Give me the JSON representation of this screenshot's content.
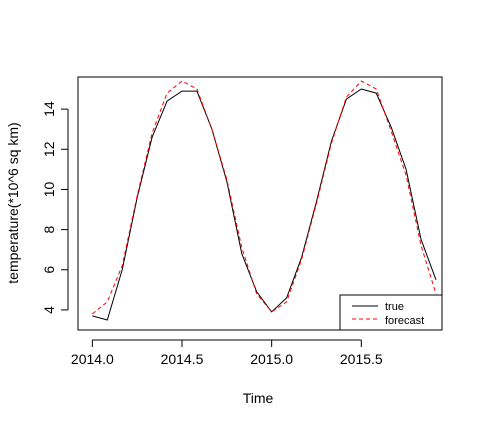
{
  "chart_data": {
    "type": "line",
    "xlabel": "Time",
    "ylabel": "temperature(*10^6 sq km)",
    "xlim": [
      2013.92,
      2015.95
    ],
    "ylim": [
      3.0,
      15.6
    ],
    "xticks": [
      2014.0,
      2014.5,
      2015.0,
      2015.5
    ],
    "xtick_labels": [
      "2014.0",
      "2014.5",
      "2015.0",
      "2015.5"
    ],
    "yticks": [
      4,
      6,
      8,
      10,
      12,
      14
    ],
    "ytick_labels": [
      "4",
      "6",
      "8",
      "10",
      "12",
      "14"
    ],
    "grid": false,
    "legend_position": "bottom-right",
    "x": [
      2014.0,
      2014.0833,
      2014.1667,
      2014.25,
      2014.3333,
      2014.4167,
      2014.5,
      2014.5833,
      2014.6667,
      2014.75,
      2014.8333,
      2014.9167,
      2015.0,
      2015.0833,
      2015.1667,
      2015.25,
      2015.3333,
      2015.4167,
      2015.5,
      2015.5833,
      2015.6667,
      2015.75,
      2015.8333,
      2015.9167
    ],
    "series": [
      {
        "name": "true",
        "color": "#000000",
        "dash": "solid",
        "values": [
          3.7,
          3.5,
          6.0,
          9.6,
          12.6,
          14.4,
          14.9,
          14.9,
          13.0,
          10.4,
          6.8,
          4.9,
          3.9,
          4.6,
          6.6,
          9.4,
          12.4,
          14.5,
          15.0,
          14.8,
          13.1,
          11.0,
          7.5,
          5.5
        ]
      },
      {
        "name": "forecast",
        "color": "#ff0000",
        "dash": "dashed",
        "values": [
          3.8,
          4.4,
          6.2,
          9.7,
          12.8,
          14.8,
          15.4,
          15.0,
          13.0,
          10.5,
          7.1,
          4.8,
          3.9,
          4.4,
          6.5,
          9.3,
          12.3,
          14.6,
          15.4,
          15.0,
          12.9,
          10.7,
          7.2,
          4.8
        ]
      }
    ]
  }
}
